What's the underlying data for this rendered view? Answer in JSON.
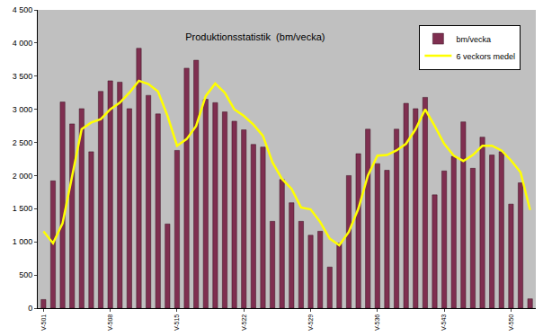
{
  "chart_data": {
    "type": "bar",
    "title": "Produktionsstatistik  (bm/vecka)",
    "categories": [
      "V-501",
      null,
      null,
      null,
      null,
      null,
      null,
      "V-508",
      null,
      null,
      null,
      null,
      null,
      null,
      "V-515",
      null,
      null,
      null,
      null,
      null,
      null,
      "V-522",
      null,
      null,
      null,
      null,
      null,
      null,
      "V-529",
      null,
      null,
      null,
      null,
      null,
      null,
      "V-536",
      null,
      null,
      null,
      null,
      null,
      null,
      "V-543",
      null,
      null,
      null,
      null,
      null,
      null,
      "V-550",
      null,
      null
    ],
    "series": [
      {
        "name": "bm/vecka",
        "type": "bar",
        "color": "#7f2f50",
        "values": [
          130,
          1920,
          3110,
          2780,
          3010,
          2360,
          3270,
          3430,
          3410,
          3010,
          3920,
          3210,
          2930,
          1270,
          2380,
          3620,
          3740,
          3150,
          3100,
          2960,
          2820,
          2690,
          2470,
          2430,
          1310,
          1940,
          1590,
          1310,
          1100,
          1160,
          620,
          980,
          2000,
          2330,
          2700,
          2180,
          2080,
          2700,
          3090,
          3010,
          3180,
          1710,
          2070,
          2290,
          2810,
          2110,
          2580,
          2310,
          2360,
          1570,
          1890,
          140
        ]
      },
      {
        "name": "6 veckors medel",
        "type": "line",
        "color": "#ffff00",
        "values": [
          1160,
          980,
          1280,
          2000,
          2700,
          2800,
          2850,
          3000,
          3100,
          3250,
          3430,
          3380,
          3270,
          2900,
          2450,
          2550,
          2750,
          3200,
          3390,
          3250,
          3000,
          2900,
          2770,
          2600,
          2200,
          1950,
          1800,
          1520,
          1490,
          1300,
          1050,
          950,
          1150,
          1500,
          2000,
          2300,
          2310,
          2380,
          2480,
          2700,
          3000,
          2750,
          2480,
          2300,
          2220,
          2310,
          2450,
          2450,
          2380,
          2230,
          2050,
          1480
        ]
      }
    ],
    "ylim": [
      0,
      4500
    ],
    "yticks": [
      0,
      500,
      {
        "value": 1000,
        "label": "1 000"
      },
      {
        "value": 1500,
        "label": "1 500"
      },
      {
        "value": 2000,
        "label": "2 000"
      },
      {
        "value": 2500,
        "label": "2 500"
      },
      {
        "value": 3000,
        "label": "3 000"
      },
      {
        "value": 3500,
        "label": "3 500"
      },
      {
        "value": 4000,
        "label": "4 000"
      },
      {
        "value": 4500,
        "label": "4 500"
      }
    ],
    "grid": false,
    "legend": "top-right"
  }
}
